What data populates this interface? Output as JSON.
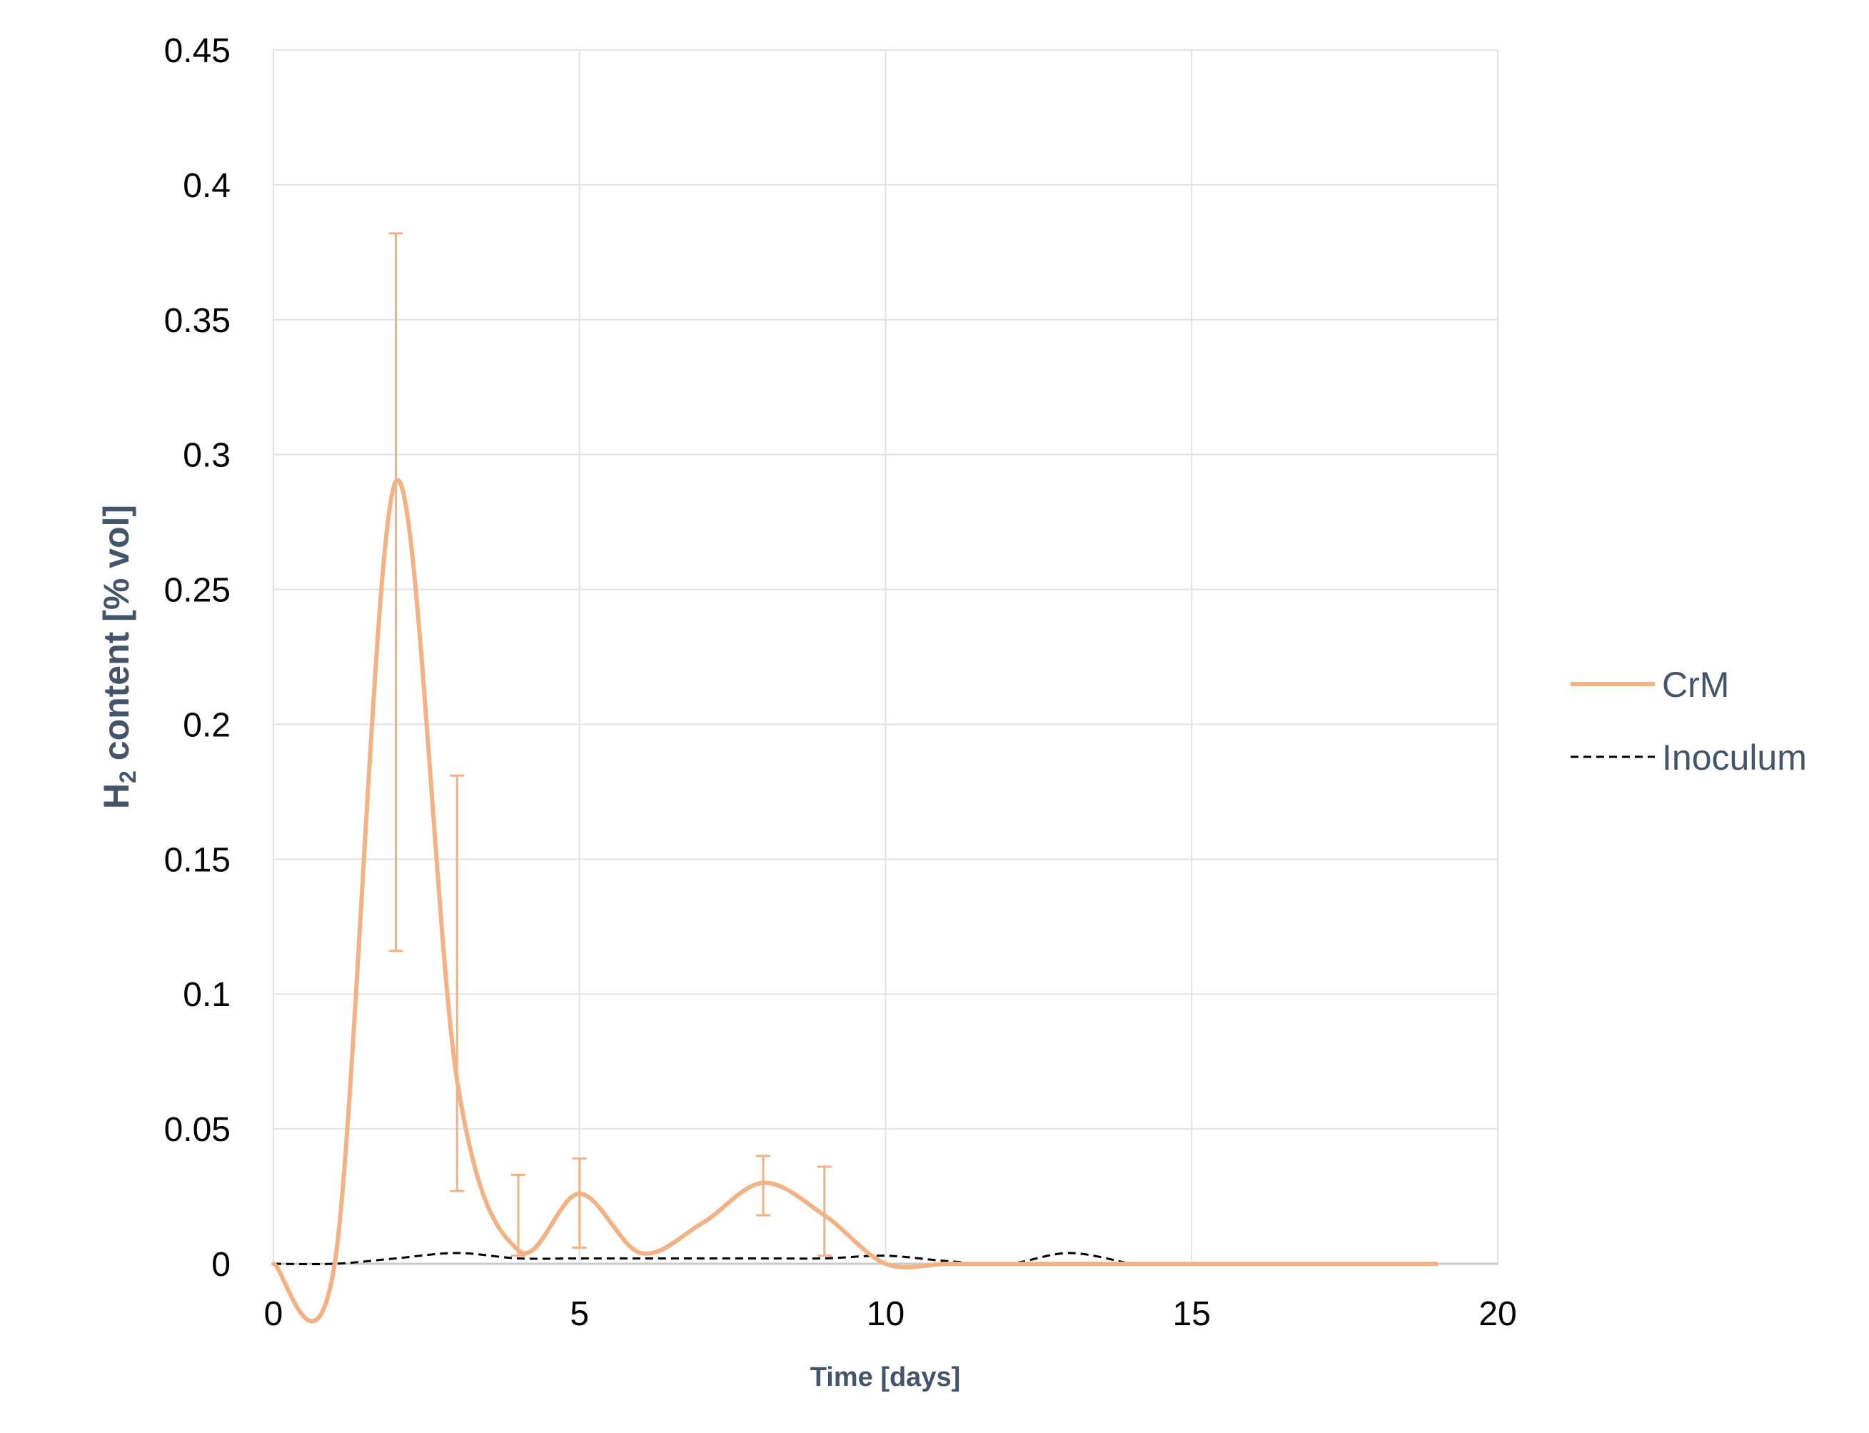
{
  "chart_data": {
    "type": "line",
    "title": "",
    "xlabel": "Time [days]",
    "ylabel": {
      "main": "H",
      "subscript": "2",
      "rest": " content [% vol]"
    },
    "xlim": [
      0,
      20
    ],
    "ylim": [
      0,
      0.45
    ],
    "xticks": [
      "0",
      "5",
      "10",
      "15",
      "20"
    ],
    "xtick_values": [
      0,
      5,
      10,
      15,
      20
    ],
    "yticks": [
      "0",
      "0.05",
      "0.1",
      "0.15",
      "0.2",
      "0.25",
      "0.3",
      "0.35",
      "0.4",
      "0.45"
    ],
    "ytick_values": [
      0,
      0.05,
      0.1,
      0.15,
      0.2,
      0.25,
      0.3,
      0.35,
      0.4,
      0.45
    ],
    "grid": true,
    "legend_position": "right",
    "series": [
      {
        "name": "CrM",
        "color": "#f4b183",
        "style": "solid",
        "smooth": true,
        "x": [
          0,
          1,
          2,
          3,
          4,
          5,
          6,
          7,
          8,
          9,
          10,
          11,
          12,
          13,
          14,
          15,
          16,
          17,
          18,
          19
        ],
        "y": [
          0,
          0,
          0.29,
          0.068,
          0.005,
          0.026,
          0.004,
          0.015,
          0.03,
          0.018,
          0,
          0,
          0,
          0,
          0,
          0,
          0,
          0,
          0,
          0
        ],
        "error_bars": [
          {
            "x": 2,
            "low": 0.116,
            "high": 0.382
          },
          {
            "x": 3,
            "low": 0.027,
            "high": 0.181
          },
          {
            "x": 4,
            "low": 0.003,
            "high": 0.033
          },
          {
            "x": 5,
            "low": 0.006,
            "high": 0.039
          },
          {
            "x": 8,
            "low": 0.018,
            "high": 0.04
          },
          {
            "x": 9,
            "low": 0.003,
            "high": 0.036
          }
        ]
      },
      {
        "name": "Inoculum",
        "color": "#000000",
        "style": "dashed",
        "smooth": true,
        "x": [
          0,
          1,
          2,
          3,
          4,
          5,
          6,
          7,
          8,
          9,
          10,
          11,
          12,
          13,
          14
        ],
        "y": [
          0,
          0,
          0.002,
          0.004,
          0.002,
          0.002,
          0.002,
          0.002,
          0.002,
          0.002,
          0.003,
          0.001,
          0,
          0.004,
          0
        ]
      }
    ]
  }
}
